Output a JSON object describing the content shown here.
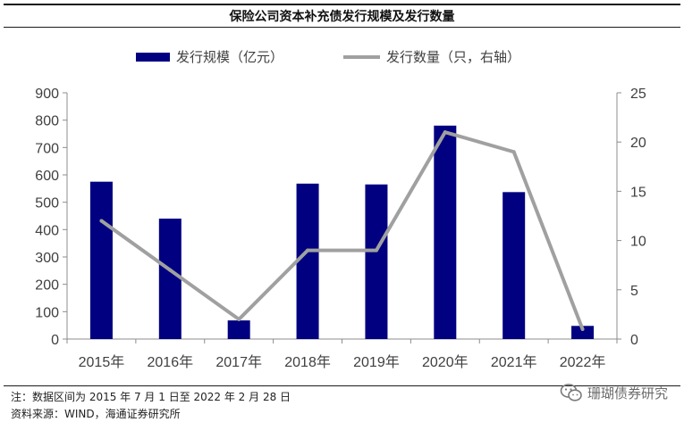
{
  "title": "保险公司资本补充债发行规模及发行数量",
  "note": "注：数据区间为 2015 年 7 月 1 日至 2022 年 2 月 28 日",
  "source": "资料来源：WIND，海通证券研究所",
  "watermark": "珊瑚债券研究",
  "colors": {
    "bar": "#000080",
    "line": "#a0a0a0"
  },
  "chart_data": {
    "type": "bar",
    "categories": [
      "2015年",
      "2016年",
      "2017年",
      "2018年",
      "2019年",
      "2020年",
      "2021年",
      "2022年"
    ],
    "series": [
      {
        "name": "发行规模（亿元）",
        "type": "bar",
        "axis": "left",
        "values": [
          575,
          440,
          68,
          568,
          565,
          780,
          537,
          48
        ]
      },
      {
        "name": "发行数量（只，右轴）",
        "type": "line",
        "axis": "right",
        "values": [
          12,
          7,
          2,
          9,
          9,
          21,
          19,
          1
        ]
      }
    ],
    "y_left": {
      "min": 0,
      "max": 900,
      "ticks": [
        0,
        100,
        200,
        300,
        400,
        500,
        600,
        700,
        800,
        900
      ]
    },
    "y_right": {
      "min": 0,
      "max": 25,
      "ticks": [
        0,
        5,
        10,
        15,
        20,
        25
      ]
    },
    "legend_position": "top",
    "grid": false
  }
}
